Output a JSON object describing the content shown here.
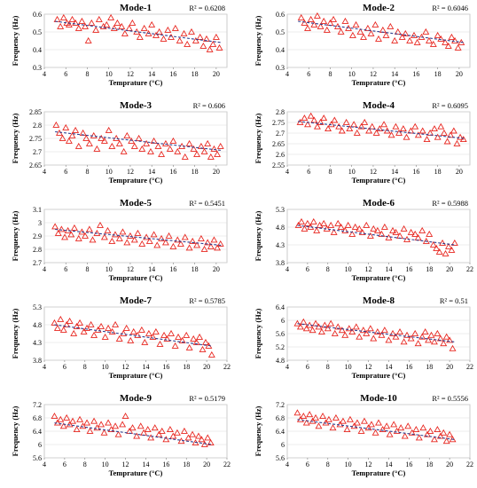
{
  "chart_data": [
    {
      "type": "scatter",
      "title": "Mode-1",
      "r2": "R² = 0.6208",
      "xlabel": "Temprature (°C)",
      "ylabel": "Frequency (Hz)",
      "xlim": [
        4,
        21
      ],
      "ylim": [
        0.3,
        0.6
      ],
      "xticks": [
        4,
        6,
        8,
        10,
        12,
        14,
        16,
        18,
        20
      ],
      "yticks": [
        "0.3",
        "0.4",
        "0.5",
        "0.6"
      ],
      "trend": [
        0.56,
        0.44
      ],
      "x": [
        5.2,
        5.5,
        5.8,
        6.1,
        6.3,
        6.6,
        6.9,
        7.2,
        7.5,
        7.8,
        8.1,
        8.4,
        8.8,
        9.1,
        9.5,
        9.8,
        10.2,
        10.5,
        10.8,
        11.2,
        11.5,
        11.9,
        12.2,
        12.6,
        12.9,
        13.3,
        13.7,
        14.0,
        14.4,
        14.7,
        15.1,
        15.5,
        15.8,
        16.2,
        16.6,
        17.0,
        17.3,
        17.7,
        18.1,
        18.5,
        18.8,
        19.1,
        19.4,
        19.7,
        20.0,
        20.3
      ],
      "y": [
        0.57,
        0.53,
        0.58,
        0.55,
        0.54,
        0.57,
        0.55,
        0.52,
        0.56,
        0.53,
        0.45,
        0.55,
        0.51,
        0.57,
        0.53,
        0.54,
        0.58,
        0.52,
        0.55,
        0.53,
        0.49,
        0.52,
        0.55,
        0.5,
        0.47,
        0.52,
        0.49,
        0.54,
        0.48,
        0.5,
        0.46,
        0.51,
        0.47,
        0.52,
        0.45,
        0.49,
        0.43,
        0.5,
        0.45,
        0.47,
        0.42,
        0.46,
        0.4,
        0.43,
        0.47,
        0.41
      ]
    },
    {
      "type": "scatter",
      "title": "Mode-2",
      "r2": "R² = 0.6046",
      "xlabel": "Temprature (°C)",
      "ylabel": "Frequency (Hz)",
      "xlim": [
        4,
        21
      ],
      "ylim": [
        0.3,
        0.6
      ],
      "xticks": [
        4,
        6,
        8,
        10,
        12,
        14,
        16,
        18,
        20
      ],
      "yticks": [
        "0.3",
        "0.4",
        "0.5",
        "0.6"
      ],
      "trend": [
        0.56,
        0.44
      ],
      "x": [
        5.3,
        5.6,
        5.9,
        6.2,
        6.5,
        6.8,
        7.1,
        7.4,
        7.7,
        8.0,
        8.3,
        8.7,
        9.0,
        9.4,
        9.7,
        10.1,
        10.4,
        10.8,
        11.1,
        11.5,
        11.8,
        12.2,
        12.5,
        12.9,
        13.2,
        13.6,
        14.0,
        14.3,
        14.7,
        15.0,
        15.4,
        15.8,
        16.1,
        16.5,
        16.9,
        17.2,
        17.6,
        18.0,
        18.3,
        18.7,
        19.0,
        19.3,
        19.6,
        19.9,
        20.2
      ],
      "y": [
        0.58,
        0.55,
        0.52,
        0.57,
        0.54,
        0.59,
        0.53,
        0.56,
        0.51,
        0.55,
        0.57,
        0.53,
        0.5,
        0.56,
        0.52,
        0.48,
        0.54,
        0.5,
        0.47,
        0.52,
        0.49,
        0.54,
        0.46,
        0.51,
        0.48,
        0.53,
        0.45,
        0.5,
        0.47,
        0.49,
        0.45,
        0.48,
        0.44,
        0.47,
        0.5,
        0.45,
        0.43,
        0.48,
        0.46,
        0.44,
        0.42,
        0.47,
        0.45,
        0.41,
        0.44
      ]
    },
    {
      "type": "scatter",
      "title": "Mode-3",
      "r2": "R² = 0.606",
      "xlabel": "Temprature (°C)",
      "ylabel": "Frequency (Hz)",
      "xlim": [
        4,
        21
      ],
      "ylim": [
        2.65,
        2.85
      ],
      "xticks": [
        4,
        6,
        8,
        10,
        12,
        14,
        16,
        18,
        20
      ],
      "yticks": [
        "2.65",
        "2.7",
        "2.75",
        "2.8",
        "2.85"
      ],
      "trend": [
        2.775,
        2.705
      ],
      "x": [
        5.1,
        5.4,
        5.7,
        6.0,
        6.3,
        6.6,
        6.9,
        7.2,
        7.6,
        7.9,
        8.2,
        8.6,
        8.9,
        9.3,
        9.6,
        10.0,
        10.3,
        10.7,
        11.0,
        11.4,
        11.7,
        12.1,
        12.4,
        12.8,
        13.1,
        13.5,
        13.9,
        14.2,
        14.6,
        14.9,
        15.3,
        15.7,
        16.0,
        16.4,
        16.8,
        17.1,
        17.5,
        17.9,
        18.2,
        18.6,
        18.9,
        19.2,
        19.5,
        19.8,
        20.1,
        20.4
      ],
      "y": [
        2.8,
        2.77,
        2.75,
        2.79,
        2.74,
        2.76,
        2.78,
        2.72,
        2.77,
        2.75,
        2.73,
        2.76,
        2.71,
        2.75,
        2.74,
        2.78,
        2.72,
        2.75,
        2.73,
        2.7,
        2.76,
        2.74,
        2.72,
        2.75,
        2.71,
        2.73,
        2.7,
        2.74,
        2.72,
        2.69,
        2.73,
        2.71,
        2.74,
        2.7,
        2.72,
        2.68,
        2.73,
        2.71,
        2.69,
        2.72,
        2.7,
        2.73,
        2.68,
        2.71,
        2.69,
        2.72
      ]
    },
    {
      "type": "scatter",
      "title": "Mode-4",
      "r2": "R² = 0.6095",
      "xlabel": "Temprature (°C)",
      "ylabel": "Frequency (Hz)",
      "xlim": [
        4,
        21
      ],
      "ylim": [
        2.55,
        2.8
      ],
      "xticks": [
        4,
        6,
        8,
        10,
        12,
        14,
        16,
        18,
        20
      ],
      "yticks": [
        "2.55",
        "2.6",
        "2.65",
        "2.7",
        "2.75",
        "2.8"
      ],
      "trend": [
        2.755,
        2.675
      ],
      "x": [
        5.2,
        5.6,
        5.9,
        6.2,
        6.5,
        6.8,
        7.1,
        7.4,
        7.8,
        8.1,
        8.4,
        8.8,
        9.1,
        9.5,
        9.8,
        10.2,
        10.5,
        10.9,
        11.2,
        11.6,
        11.9,
        12.3,
        12.6,
        13.0,
        13.3,
        13.7,
        14.1,
        14.4,
        14.8,
        15.1,
        15.5,
        15.9,
        16.2,
        16.6,
        17.0,
        17.3,
        17.7,
        18.0,
        18.3,
        18.6,
        18.9,
        19.2,
        19.5,
        19.8,
        20.1,
        20.4
      ],
      "y": [
        2.75,
        2.77,
        2.74,
        2.78,
        2.76,
        2.73,
        2.75,
        2.77,
        2.72,
        2.74,
        2.76,
        2.73,
        2.71,
        2.75,
        2.72,
        2.74,
        2.7,
        2.73,
        2.75,
        2.71,
        2.73,
        2.7,
        2.72,
        2.74,
        2.71,
        2.69,
        2.73,
        2.7,
        2.72,
        2.68,
        2.71,
        2.73,
        2.69,
        2.71,
        2.67,
        2.7,
        2.72,
        2.68,
        2.73,
        2.7,
        2.66,
        2.69,
        2.71,
        2.65,
        2.68,
        2.67
      ]
    },
    {
      "type": "scatter",
      "title": "Mode-5",
      "r2": "R² = 0.5451",
      "xlabel": "Temprature (°C)",
      "ylabel": "Frequency (Hz)",
      "xlim": [
        4,
        21
      ],
      "ylim": [
        2.7,
        3.1
      ],
      "xticks": [
        4,
        6,
        8,
        10,
        12,
        14,
        16,
        18,
        20
      ],
      "yticks": [
        "2.7",
        "2.8",
        "2.9",
        "3",
        "3.1"
      ],
      "trend": [
        2.95,
        2.83
      ],
      "x": [
        5.0,
        5.3,
        5.6,
        5.9,
        6.2,
        6.5,
        6.8,
        7.2,
        7.5,
        7.8,
        8.2,
        8.5,
        8.9,
        9.2,
        9.6,
        9.9,
        10.3,
        10.6,
        11.0,
        11.3,
        11.7,
        12.0,
        12.4,
        12.7,
        13.1,
        13.5,
        13.8,
        14.2,
        14.5,
        14.9,
        15.3,
        15.6,
        16.0,
        16.4,
        16.7,
        17.1,
        17.5,
        17.8,
        18.2,
        18.6,
        18.9,
        19.2,
        19.5,
        19.8,
        20.1,
        20.4
      ],
      "y": [
        2.97,
        2.92,
        2.95,
        2.89,
        2.94,
        2.91,
        2.96,
        2.88,
        2.93,
        2.9,
        2.95,
        2.87,
        2.92,
        2.98,
        2.89,
        2.94,
        2.86,
        2.91,
        2.88,
        2.93,
        2.85,
        2.9,
        2.87,
        2.92,
        2.84,
        2.89,
        2.86,
        2.91,
        2.83,
        2.88,
        2.85,
        2.9,
        2.82,
        2.87,
        2.84,
        2.89,
        2.81,
        2.86,
        2.83,
        2.88,
        2.8,
        2.85,
        2.82,
        2.87,
        2.81,
        2.84
      ]
    },
    {
      "type": "scatter",
      "title": "Mode-6",
      "r2": "R² = 0.5988",
      "xlabel": "Temprature (°C)",
      "ylabel": "Frequency (Hz)",
      "xlim": [
        4,
        22
      ],
      "ylim": [
        3.8,
        5.3
      ],
      "xticks": [
        4,
        6,
        8,
        10,
        12,
        14,
        16,
        18,
        20,
        22
      ],
      "yticks": [
        "3.8",
        "4.3",
        "4.8",
        "5.3"
      ],
      "trend": [
        4.85,
        4.3
      ],
      "x": [
        5.1,
        5.4,
        5.7,
        6.0,
        6.3,
        6.6,
        6.9,
        7.2,
        7.6,
        7.9,
        8.3,
        8.6,
        9.0,
        9.3,
        9.7,
        10.0,
        10.4,
        10.7,
        11.1,
        11.4,
        11.8,
        12.2,
        12.5,
        12.9,
        13.3,
        13.6,
        14.0,
        14.4,
        14.7,
        15.1,
        15.5,
        15.8,
        16.2,
        16.6,
        16.9,
        17.3,
        17.7,
        18.0,
        18.4,
        18.7,
        19.0,
        19.3,
        19.6,
        19.9,
        20.2,
        20.5
      ],
      "y": [
        4.85,
        4.95,
        4.75,
        4.9,
        4.8,
        4.95,
        4.7,
        4.85,
        4.9,
        4.75,
        4.85,
        4.65,
        4.9,
        4.8,
        4.7,
        4.85,
        4.6,
        4.8,
        4.75,
        4.65,
        4.85,
        4.55,
        4.75,
        4.7,
        4.6,
        4.8,
        4.5,
        4.7,
        4.65,
        4.55,
        4.75,
        4.45,
        4.65,
        4.6,
        4.5,
        4.7,
        4.4,
        4.6,
        4.3,
        4.2,
        4.1,
        4.35,
        4.05,
        4.25,
        4.15,
        4.35
      ]
    },
    {
      "type": "scatter",
      "title": "Mode-7",
      "r2": "R² = 0.5785",
      "xlabel": "Temprature (°C)",
      "ylabel": "Frequency (Hz)",
      "xlim": [
        4,
        22
      ],
      "ylim": [
        3.8,
        5.3
      ],
      "xticks": [
        4,
        6,
        8,
        10,
        12,
        14,
        16,
        18,
        20,
        22
      ],
      "yticks": [
        "3.8",
        "4.3",
        "4.8",
        "5.3"
      ],
      "trend": [
        4.8,
        4.2
      ],
      "x": [
        5.0,
        5.3,
        5.6,
        5.9,
        6.2,
        6.5,
        6.9,
        7.2,
        7.5,
        7.9,
        8.2,
        8.6,
        8.9,
        9.3,
        9.6,
        10.0,
        10.3,
        10.7,
        11.0,
        11.4,
        11.8,
        12.1,
        12.5,
        12.8,
        13.2,
        13.6,
        13.9,
        14.3,
        14.7,
        15.0,
        15.4,
        15.8,
        16.1,
        16.5,
        16.9,
        17.2,
        17.6,
        18.0,
        18.3,
        18.7,
        19.0,
        19.3,
        19.6,
        19.9,
        20.2,
        20.5
      ],
      "y": [
        4.85,
        4.7,
        4.95,
        4.65,
        4.8,
        4.9,
        4.55,
        4.75,
        4.85,
        4.6,
        4.7,
        4.8,
        4.5,
        4.65,
        4.75,
        4.45,
        4.7,
        4.6,
        4.8,
        4.4,
        4.55,
        4.7,
        4.35,
        4.6,
        4.5,
        4.65,
        4.3,
        4.55,
        4.45,
        4.6,
        4.25,
        4.5,
        4.4,
        4.55,
        4.2,
        4.45,
        4.35,
        4.5,
        4.15,
        4.4,
        4.3,
        4.45,
        4.1,
        4.3,
        4.2,
        3.95
      ]
    },
    {
      "type": "scatter",
      "title": "Mode-8",
      "r2": "R² = 0.51",
      "xlabel": "Temprature (°C)",
      "ylabel": "Frequency (Hz)",
      "xlim": [
        4,
        22
      ],
      "ylim": [
        4.8,
        6.4
      ],
      "xticks": [
        4,
        6,
        8,
        10,
        12,
        14,
        16,
        18,
        20,
        22
      ],
      "yticks": [
        "4.8",
        "5.2",
        "5.6",
        "6",
        "6.4"
      ],
      "trend": [
        5.9,
        5.35
      ],
      "x": [
        5.0,
        5.3,
        5.6,
        5.9,
        6.2,
        6.5,
        6.8,
        7.1,
        7.4,
        7.7,
        8.0,
        8.3,
        8.7,
        9.0,
        9.4,
        9.7,
        10.1,
        10.4,
        10.8,
        11.1,
        11.5,
        11.8,
        12.2,
        12.5,
        12.9,
        13.3,
        13.6,
        14.0,
        14.4,
        14.7,
        15.1,
        15.5,
        15.8,
        16.2,
        16.6,
        16.9,
        17.3,
        17.6,
        17.9,
        18.2,
        18.5,
        18.8,
        19.1,
        19.4,
        19.7,
        20.0,
        20.3
      ],
      "y": [
        5.9,
        5.8,
        5.95,
        5.75,
        5.85,
        5.7,
        5.9,
        5.8,
        5.65,
        5.85,
        5.75,
        5.9,
        5.6,
        5.8,
        5.7,
        5.55,
        5.75,
        5.65,
        5.8,
        5.5,
        5.7,
        5.6,
        5.75,
        5.45,
        5.65,
        5.55,
        5.7,
        5.4,
        5.6,
        5.5,
        5.65,
        5.35,
        5.55,
        5.45,
        5.6,
        5.3,
        5.5,
        5.65,
        5.4,
        5.55,
        5.35,
        5.6,
        5.45,
        5.3,
        5.5,
        5.4,
        5.15
      ]
    },
    {
      "type": "scatter",
      "title": "Mode-9",
      "r2": "R² = 0.5179",
      "xlabel": "Temprature (°C)",
      "ylabel": "Frequency (Hz)",
      "xlim": [
        4,
        22
      ],
      "ylim": [
        5.6,
        7.2
      ],
      "xticks": [
        4,
        6,
        8,
        10,
        12,
        14,
        16,
        18,
        20,
        22
      ],
      "yticks": [
        "5.6",
        "6",
        "6.4",
        "6.8",
        "7.2"
      ],
      "trend": [
        6.65,
        6.0
      ],
      "x": [
        5.0,
        5.3,
        5.6,
        5.9,
        6.2,
        6.5,
        6.8,
        7.2,
        7.5,
        7.8,
        8.2,
        8.5,
        8.9,
        9.2,
        9.6,
        9.9,
        10.3,
        10.6,
        11.0,
        11.3,
        11.7,
        12.0,
        12.4,
        12.7,
        13.1,
        13.5,
        13.8,
        14.2,
        14.5,
        14.9,
        15.3,
        15.6,
        16.0,
        16.4,
        16.7,
        17.1,
        17.5,
        17.8,
        18.2,
        18.6,
        18.9,
        19.2,
        19.5,
        19.8,
        20.1,
        20.4
      ],
      "y": [
        6.85,
        6.65,
        6.75,
        6.55,
        6.8,
        6.6,
        6.7,
        6.45,
        6.75,
        6.55,
        6.65,
        6.4,
        6.7,
        6.5,
        6.6,
        6.35,
        6.65,
        6.45,
        6.55,
        6.3,
        6.6,
        6.85,
        6.4,
        6.5,
        6.25,
        6.55,
        6.35,
        6.45,
        6.2,
        6.5,
        6.3,
        6.4,
        6.15,
        6.45,
        6.25,
        6.35,
        6.1,
        6.4,
        6.2,
        6.3,
        6.05,
        6.25,
        6.15,
        6.0,
        6.2,
        6.05
      ]
    },
    {
      "type": "scatter",
      "title": "Mode-10",
      "r2": "R² = 0.5556",
      "xlabel": "Temprature (°C)",
      "ylabel": "Frequency (Hz)",
      "xlim": [
        4,
        22
      ],
      "ylim": [
        5.6,
        7.2
      ],
      "xticks": [
        4,
        6,
        8,
        10,
        12,
        14,
        16,
        18,
        20,
        22
      ],
      "yticks": [
        "5.6",
        "6",
        "6.4",
        "6.8",
        "7.2"
      ],
      "trend": [
        6.75,
        6.15
      ],
      "x": [
        5.0,
        5.3,
        5.6,
        5.9,
        6.2,
        6.5,
        6.8,
        7.1,
        7.5,
        7.8,
        8.1,
        8.5,
        8.8,
        9.2,
        9.5,
        9.9,
        10.2,
        10.6,
        10.9,
        11.3,
        11.6,
        12.0,
        12.3,
        12.7,
        13.0,
        13.4,
        13.8,
        14.1,
        14.5,
        14.8,
        15.2,
        15.6,
        15.9,
        16.3,
        16.7,
        17.0,
        17.4,
        17.8,
        18.1,
        18.5,
        18.8,
        19.1,
        19.4,
        19.7,
        20.0,
        20.3
      ],
      "y": [
        6.95,
        6.75,
        6.85,
        6.65,
        6.9,
        6.7,
        6.8,
        6.55,
        6.85,
        6.65,
        6.75,
        6.5,
        6.8,
        6.6,
        6.7,
        6.45,
        6.75,
        6.55,
        6.65,
        6.4,
        6.7,
        6.5,
        6.6,
        6.35,
        6.65,
        6.45,
        6.55,
        6.3,
        6.6,
        6.4,
        6.5,
        6.25,
        6.55,
        6.35,
        6.45,
        6.2,
        6.5,
        6.3,
        6.4,
        6.15,
        6.45,
        6.25,
        6.35,
        6.1,
        6.3,
        6.15
      ]
    }
  ]
}
